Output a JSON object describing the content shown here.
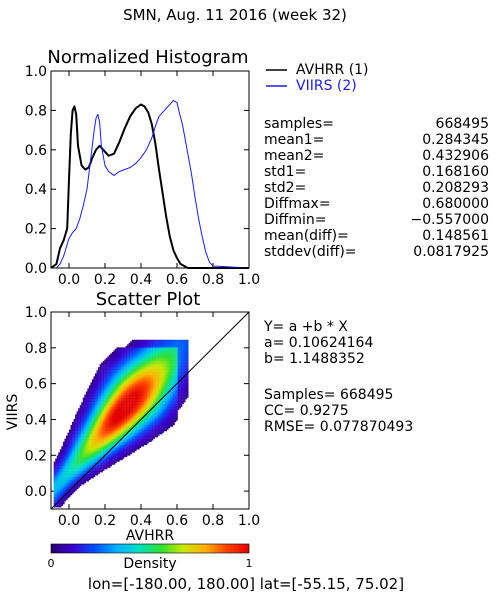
{
  "figure": {
    "title": "SMN,  Aug. 11 2016 (week 32)",
    "footer": "lon=[-180.00, 180.00] lat=[-55.15, 75.02]"
  },
  "colors": {
    "avhrr": "#000000",
    "viirs": "#1a1aff",
    "diagonal": "#000000"
  },
  "chart_data": [
    {
      "type": "line",
      "title": "Normalized Histogram",
      "xlim": [
        -0.1,
        1.0
      ],
      "ylim": [
        0.0,
        1.0
      ],
      "xticks": [
        "0.0",
        "0.2",
        "0.4",
        "0.6",
        "0.8",
        "1.0"
      ],
      "yticks": [
        "0.0",
        "0.2",
        "0.4",
        "0.6",
        "0.8",
        "1.0"
      ],
      "legend": "top-right, outside",
      "series": [
        {
          "name": "AVHRR (1)",
          "color": "#000000",
          "x": [
            -0.1,
            -0.07,
            -0.05,
            -0.03,
            -0.01,
            0.0,
            0.01,
            0.02,
            0.03,
            0.04,
            0.05,
            0.07,
            0.09,
            0.11,
            0.13,
            0.15,
            0.17,
            0.2,
            0.22,
            0.25,
            0.28,
            0.31,
            0.34,
            0.37,
            0.4,
            0.42,
            0.44,
            0.46,
            0.48,
            0.5,
            0.52,
            0.54,
            0.56,
            0.58,
            0.6,
            0.62,
            0.64,
            0.66,
            0.7,
            1.0
          ],
          "y": [
            0.0,
            0.02,
            0.1,
            0.14,
            0.2,
            0.45,
            0.68,
            0.8,
            0.82,
            0.78,
            0.62,
            0.52,
            0.5,
            0.51,
            0.56,
            0.6,
            0.62,
            0.59,
            0.57,
            0.58,
            0.64,
            0.71,
            0.77,
            0.81,
            0.83,
            0.82,
            0.79,
            0.73,
            0.63,
            0.5,
            0.38,
            0.26,
            0.16,
            0.09,
            0.05,
            0.02,
            0.01,
            0.0,
            0.0,
            0.0
          ]
        },
        {
          "name": "VIIRS (2)",
          "color": "#1a1aff",
          "x": [
            -0.1,
            -0.07,
            -0.05,
            -0.03,
            -0.01,
            0.0,
            0.02,
            0.04,
            0.06,
            0.08,
            0.1,
            0.12,
            0.14,
            0.15,
            0.16,
            0.17,
            0.18,
            0.2,
            0.22,
            0.25,
            0.28,
            0.31,
            0.34,
            0.37,
            0.4,
            0.43,
            0.46,
            0.48,
            0.5,
            0.53,
            0.56,
            0.58,
            0.6,
            0.61,
            0.63,
            0.65,
            0.68,
            0.7,
            0.72,
            0.74,
            0.76,
            0.78,
            0.8,
            1.0
          ],
          "y": [
            0.0,
            0.0,
            0.02,
            0.06,
            0.12,
            0.15,
            0.18,
            0.2,
            0.25,
            0.32,
            0.4,
            0.55,
            0.7,
            0.76,
            0.78,
            0.74,
            0.62,
            0.52,
            0.49,
            0.47,
            0.49,
            0.5,
            0.51,
            0.53,
            0.56,
            0.6,
            0.66,
            0.72,
            0.77,
            0.8,
            0.83,
            0.85,
            0.84,
            0.8,
            0.73,
            0.63,
            0.48,
            0.36,
            0.25,
            0.16,
            0.08,
            0.03,
            0.01,
            0.0
          ]
        }
      ],
      "stats": [
        {
          "label": "samples=",
          "value": "668495"
        },
        {
          "label": "mean1=",
          "value": "0.284345"
        },
        {
          "label": "mean2=",
          "value": "0.432906"
        },
        {
          "label": "std1=",
          "value": "0.168160"
        },
        {
          "label": "std2=",
          "value": "0.208293"
        },
        {
          "label": "Diffmax=",
          "value": "0.680000"
        },
        {
          "label": "Diffmin=",
          "value": "-0.557000"
        },
        {
          "label": "mean(diff)=",
          "value": "0.148561"
        },
        {
          "label": "stddev(diff)=",
          "value": "0.0817925"
        }
      ]
    },
    {
      "type": "heatmap",
      "title": "Scatter Plot",
      "xlabel": "AVHRR",
      "ylabel": "VIIRS",
      "xlim": [
        -0.1,
        1.0
      ],
      "ylim": [
        -0.1,
        1.0
      ],
      "xticks": [
        "0.0",
        "0.2",
        "0.4",
        "0.6",
        "0.8",
        "1.0"
      ],
      "yticks": [
        "0.0",
        "0.2",
        "0.4",
        "0.6",
        "0.8",
        "1.0"
      ],
      "fit": {
        "a": 0.10624164,
        "b": 1.1488352
      },
      "equation": "Y= a +b * X",
      "fit_a_text": "a= 0.10624164",
      "fit_b_text": "b= 1.1488352",
      "samples_text": "Samples= 668495",
      "cc_text": "CC=  0.9275",
      "rmse_text": "RMSE= 0.077870493",
      "one_to_one_line": true,
      "colorbar": {
        "label": "Density",
        "min_label": "0",
        "max_label": "1",
        "colors": [
          "#2a0070",
          "#3b00d0",
          "#0050ff",
          "#00b0ff",
          "#00e0c0",
          "#30e030",
          "#c8e800",
          "#ffb000",
          "#ff4000",
          "#e00000"
        ]
      }
    }
  ]
}
